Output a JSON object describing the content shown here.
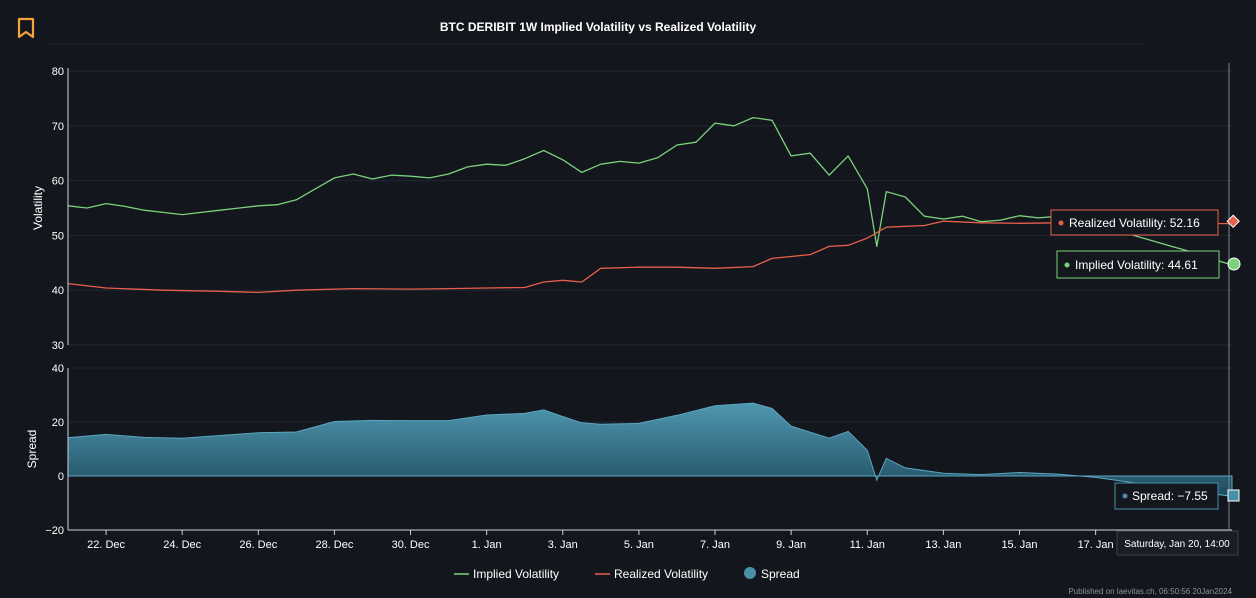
{
  "icon": "bookmark-icon",
  "accent_color": "#f5a33b",
  "footer_text": "Published on laevitas.ch, 06:50:56 20Jan2024",
  "chart_data": [
    {
      "type": "line",
      "title": "BTC DERIBIT 1W Implied Volatility vs Realized Volatility",
      "ylabel": "Volatility",
      "ylim": [
        30,
        80
      ],
      "yticks": [
        "80",
        "70",
        "60",
        "50",
        "40",
        "30"
      ],
      "x_ticks": [
        "22. Dec",
        "24. Dec",
        "26. Dec",
        "28. Dec",
        "30. Dec",
        "1. Jan",
        "3. Jan",
        "5. Jan",
        "7. Jan",
        "9. Jan",
        "11. Jan",
        "13. Jan",
        "15. Jan",
        "17. Jan"
      ],
      "x_start": "2023-12-21 00:00",
      "x_end": "2024-01-20 14:00",
      "series": [
        {
          "name": "Implied Volatility",
          "color": "#7cd17c",
          "points": [
            [
              "2023-12-21 00:00",
              55.4
            ],
            [
              "2023-12-21 12:00",
              55.0
            ],
            [
              "2023-12-22 00:00",
              55.8
            ],
            [
              "2023-12-22 12:00",
              55.3
            ],
            [
              "2023-12-23 00:00",
              54.6
            ],
            [
              "2023-12-23 12:00",
              54.2
            ],
            [
              "2023-12-24 00:00",
              53.8
            ],
            [
              "2023-12-24 12:00",
              54.2
            ],
            [
              "2023-12-25 00:00",
              54.6
            ],
            [
              "2023-12-25 12:00",
              55.0
            ],
            [
              "2023-12-26 00:00",
              55.4
            ],
            [
              "2023-12-26 12:00",
              55.6
            ],
            [
              "2023-12-27 00:00",
              56.5
            ],
            [
              "2023-12-27 12:00",
              58.5
            ],
            [
              "2023-12-28 00:00",
              60.5
            ],
            [
              "2023-12-28 12:00",
              61.2
            ],
            [
              "2023-12-29 00:00",
              60.3
            ],
            [
              "2023-12-29 12:00",
              61.0
            ],
            [
              "2023-12-30 00:00",
              60.8
            ],
            [
              "2023-12-30 12:00",
              60.5
            ],
            [
              "2023-12-31 00:00",
              61.2
            ],
            [
              "2023-12-31 12:00",
              62.5
            ],
            [
              "2024-01-01 00:00",
              63.0
            ],
            [
              "2024-01-01 12:00",
              62.8
            ],
            [
              "2024-01-02 00:00",
              64.0
            ],
            [
              "2024-01-02 12:00",
              65.5
            ],
            [
              "2024-01-03 00:00",
              63.8
            ],
            [
              "2024-01-03 12:00",
              61.5
            ],
            [
              "2024-01-04 00:00",
              63.0
            ],
            [
              "2024-01-04 12:00",
              63.5
            ],
            [
              "2024-01-05 00:00",
              63.2
            ],
            [
              "2024-01-05 12:00",
              64.2
            ],
            [
              "2024-01-06 00:00",
              66.5
            ],
            [
              "2024-01-06 12:00",
              67.0
            ],
            [
              "2024-01-07 00:00",
              70.5
            ],
            [
              "2024-01-07 12:00",
              70.0
            ],
            [
              "2024-01-08 00:00",
              71.5
            ],
            [
              "2024-01-08 12:00",
              71.0
            ],
            [
              "2024-01-09 00:00",
              64.5
            ],
            [
              "2024-01-09 12:00",
              65.0
            ],
            [
              "2024-01-10 00:00",
              61.0
            ],
            [
              "2024-01-10 12:00",
              64.5
            ],
            [
              "2024-01-11 00:00",
              58.5
            ],
            [
              "2024-01-11 06:00",
              48.0
            ],
            [
              "2024-01-11 12:00",
              58.0
            ],
            [
              "2024-01-12 00:00",
              57.0
            ],
            [
              "2024-01-12 12:00",
              53.5
            ],
            [
              "2024-01-13 00:00",
              53.0
            ],
            [
              "2024-01-13 12:00",
              53.5
            ],
            [
              "2024-01-14 00:00",
              52.5
            ],
            [
              "2024-01-14 12:00",
              52.8
            ],
            [
              "2024-01-15 00:00",
              53.6
            ],
            [
              "2024-01-15 12:00",
              53.2
            ],
            [
              "2024-01-16 00:00",
              53.5
            ],
            [
              "2024-01-16 12:00",
              52.5
            ],
            [
              "2024-01-17 00:00",
              51.8
            ],
            [
              "2024-01-17 12:00",
              51.0
            ],
            [
              "2024-01-18 00:00",
              50.0
            ],
            [
              "2024-01-18 12:00",
              49.0
            ],
            [
              "2024-01-19 00:00",
              48.0
            ],
            [
              "2024-01-19 12:00",
              47.0
            ],
            [
              "2024-01-20 00:00",
              45.8
            ],
            [
              "2024-01-20 14:00",
              44.61
            ]
          ]
        },
        {
          "name": "Realized Volatility",
          "color": "#e8604c",
          "points": [
            [
              "2023-12-21 00:00",
              41.2
            ],
            [
              "2023-12-22 00:00",
              40.4
            ],
            [
              "2023-12-23 12:00",
              40.0
            ],
            [
              "2023-12-25 00:00",
              39.8
            ],
            [
              "2023-12-26 00:00",
              39.6
            ],
            [
              "2023-12-27 00:00",
              40.0
            ],
            [
              "2023-12-28 12:00",
              40.3
            ],
            [
              "2023-12-30 00:00",
              40.2
            ],
            [
              "2023-12-31 00:00",
              40.3
            ],
            [
              "2024-01-01 00:00",
              40.4
            ],
            [
              "2024-01-02 00:00",
              40.5
            ],
            [
              "2024-01-02 12:00",
              41.5
            ],
            [
              "2024-01-03 00:00",
              41.8
            ],
            [
              "2024-01-03 12:00",
              41.5
            ],
            [
              "2024-01-04 00:00",
              44.0
            ],
            [
              "2024-01-05 00:00",
              44.2
            ],
            [
              "2024-01-06 00:00",
              44.2
            ],
            [
              "2024-01-07 00:00",
              44.0
            ],
            [
              "2024-01-08 00:00",
              44.3
            ],
            [
              "2024-01-08 12:00",
              45.8
            ],
            [
              "2024-01-09 12:00",
              46.5
            ],
            [
              "2024-01-10 00:00",
              48.0
            ],
            [
              "2024-01-10 12:00",
              48.2
            ],
            [
              "2024-01-11 00:00",
              49.5
            ],
            [
              "2024-01-11 12:00",
              51.5
            ],
            [
              "2024-01-12 12:00",
              51.8
            ],
            [
              "2024-01-13 00:00",
              52.6
            ],
            [
              "2024-01-14 00:00",
              52.3
            ],
            [
              "2024-01-15 00:00",
              52.2
            ],
            [
              "2024-01-16 00:00",
              52.3
            ],
            [
              "2024-01-17 00:00",
              52.5
            ],
            [
              "2024-01-18 00:00",
              52.3
            ],
            [
              "2024-01-19 00:00",
              52.2
            ],
            [
              "2024-01-20 14:00",
              52.16
            ]
          ]
        }
      ]
    },
    {
      "type": "area",
      "ylabel": "Spread",
      "ylim": [
        -20,
        40
      ],
      "yticks": [
        "40",
        "20",
        "0",
        "−20"
      ],
      "series": [
        {
          "name": "Spread",
          "color": "#4a8fa8",
          "points": [
            [
              "2023-12-21 00:00",
              14.2
            ],
            [
              "2023-12-22 00:00",
              15.4
            ],
            [
              "2023-12-23 00:00",
              14.3
            ],
            [
              "2023-12-24 00:00",
              14.0
            ],
            [
              "2023-12-25 00:00",
              15.0
            ],
            [
              "2023-12-26 00:00",
              16.0
            ],
            [
              "2023-12-27 00:00",
              16.3
            ],
            [
              "2023-12-28 00:00",
              20.2
            ],
            [
              "2023-12-29 00:00",
              20.6
            ],
            [
              "2023-12-30 00:00",
              20.5
            ],
            [
              "2023-12-31 00:00",
              20.5
            ],
            [
              "2024-01-01 00:00",
              22.6
            ],
            [
              "2024-01-02 00:00",
              23.2
            ],
            [
              "2024-01-02 12:00",
              24.5
            ],
            [
              "2024-01-03 00:00",
              22.0
            ],
            [
              "2024-01-03 12:00",
              19.7
            ],
            [
              "2024-01-04 00:00",
              19.2
            ],
            [
              "2024-01-05 00:00",
              19.5
            ],
            [
              "2024-01-06 00:00",
              22.5
            ],
            [
              "2024-01-07 00:00",
              26.0
            ],
            [
              "2024-01-08 00:00",
              27.0
            ],
            [
              "2024-01-08 12:00",
              25.0
            ],
            [
              "2024-01-09 00:00",
              18.5
            ],
            [
              "2024-01-10 00:00",
              14.0
            ],
            [
              "2024-01-10 12:00",
              16.5
            ],
            [
              "2024-01-11 00:00",
              9.5
            ],
            [
              "2024-01-11 06:00",
              -1.5
            ],
            [
              "2024-01-11 12:00",
              6.5
            ],
            [
              "2024-01-12 00:00",
              3.0
            ],
            [
              "2024-01-13 00:00",
              1.0
            ],
            [
              "2024-01-14 00:00",
              0.5
            ],
            [
              "2024-01-15 00:00",
              1.3
            ],
            [
              "2024-01-16 00:00",
              0.7
            ],
            [
              "2024-01-17 00:00",
              -0.5
            ],
            [
              "2024-01-18 00:00",
              -2.5
            ],
            [
              "2024-01-19 00:00",
              -4.5
            ],
            [
              "2024-01-20 14:00",
              -7.55
            ]
          ]
        }
      ]
    }
  ],
  "tooltips": {
    "realized": "Realized Volatility: 52.16",
    "implied": "Implied Volatility: 44.61",
    "spread": "Spread: −7.55",
    "date": "Saturday, Jan 20, 14:00"
  },
  "legend": [
    {
      "name": "Implied Volatility",
      "color": "#7cd17c",
      "symbol": "line"
    },
    {
      "name": "Realized Volatility",
      "color": "#e8604c",
      "symbol": "line"
    },
    {
      "name": "Spread",
      "color": "#4a8fa8",
      "symbol": "circle"
    }
  ]
}
